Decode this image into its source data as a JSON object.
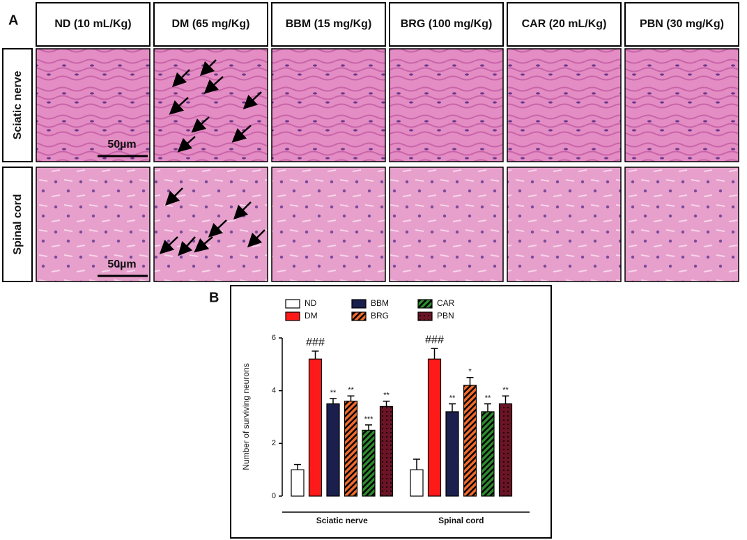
{
  "panel_a": {
    "label": "A",
    "columns": [
      "ND (10 mL/Kg)",
      "DM (65 mg/Kg)",
      "BBM (15 mg/Kg)",
      "BRG (100 mg/Kg)",
      "CAR (20 mL/Kg)",
      "PBN (30 mg/Kg)"
    ],
    "rows": [
      "Sciatic nerve",
      "Spinal cord"
    ],
    "scale_bars": [
      "50µm",
      "50µm"
    ]
  },
  "chart_data": {
    "type": "bar",
    "panel_label": "B",
    "ylabel": "Number of surviving neurons",
    "categories": [
      "Sciatic nerve",
      "Spinal cord"
    ],
    "series": [
      {
        "name": "ND",
        "color": "#ffffff",
        "pattern": "solid",
        "values": [
          1.0,
          1.0
        ],
        "errors": [
          0.2,
          0.4
        ],
        "markers": [
          null,
          null
        ]
      },
      {
        "name": "DM",
        "color": "#ff1a1a",
        "pattern": "solid",
        "values": [
          5.2,
          5.2
        ],
        "errors": [
          0.3,
          0.4
        ],
        "markers": [
          "###",
          "###"
        ]
      },
      {
        "name": "BBM",
        "color": "#1b1f4d",
        "pattern": "solid",
        "values": [
          3.5,
          3.2
        ],
        "errors": [
          0.2,
          0.3
        ],
        "markers": [
          "**",
          "**"
        ]
      },
      {
        "name": "BRG",
        "color": "#f26a2a",
        "pattern": "hatch",
        "values": [
          3.6,
          4.2
        ],
        "errors": [
          0.2,
          0.3
        ],
        "markers": [
          "**",
          "*"
        ]
      },
      {
        "name": "CAR",
        "color": "#2e8b2e",
        "pattern": "hatch",
        "values": [
          2.5,
          3.2
        ],
        "errors": [
          0.2,
          0.3
        ],
        "markers": [
          "***",
          "**"
        ]
      },
      {
        "name": "PBN",
        "color": "#6b1426",
        "pattern": "dots",
        "values": [
          3.4,
          3.5
        ],
        "errors": [
          0.2,
          0.3
        ],
        "markers": [
          "**",
          "**"
        ]
      }
    ],
    "ylim": [
      0,
      6
    ],
    "yticks": [
      0,
      2,
      4,
      6
    ]
  }
}
